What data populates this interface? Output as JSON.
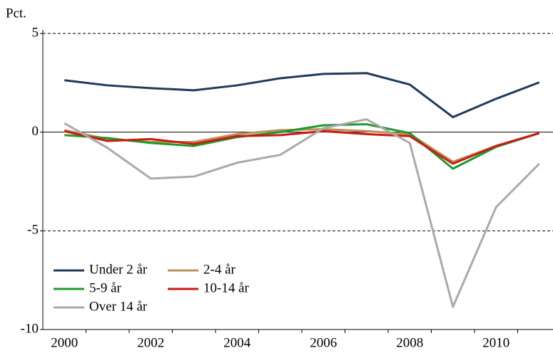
{
  "chart_data": {
    "type": "line",
    "y_label": "Pct.",
    "categories": [
      "2000",
      null,
      "2002",
      null,
      "2004",
      null,
      "2006",
      null,
      "2008",
      null,
      "2010",
      null
    ],
    "series": [
      {
        "name": "Under 2 år",
        "color": "#1f3b5a",
        "values": [
          2.63,
          2.37,
          2.23,
          2.12,
          2.37,
          2.73,
          2.95,
          2.99,
          2.41,
          0.76,
          1.69,
          2.52
        ]
      },
      {
        "name": "2-4 år",
        "color": "#b8925a",
        "values": [
          0.1,
          -0.35,
          -0.5,
          -0.5,
          -0.1,
          0.1,
          0.15,
          0.05,
          -0.1,
          -1.5,
          -0.7,
          -0.05
        ]
      },
      {
        "name": "5-9 år",
        "color": "#1e9a2e",
        "values": [
          -0.15,
          -0.3,
          -0.55,
          -0.7,
          -0.25,
          0.0,
          0.35,
          0.4,
          -0.05,
          -1.85,
          -0.75,
          -0.05
        ]
      },
      {
        "name": "10-14 år",
        "color": "#cc1a10",
        "values": [
          0.05,
          -0.45,
          -0.35,
          -0.6,
          -0.2,
          -0.15,
          0.05,
          -0.1,
          -0.2,
          -1.6,
          -0.7,
          -0.05
        ]
      },
      {
        "name": "Over 14 år",
        "color": "#aaaaaa",
        "values": [
          0.45,
          -0.8,
          -2.35,
          -2.25,
          -1.55,
          -1.15,
          0.2,
          0.65,
          -0.55,
          -8.85,
          -3.8,
          -1.6
        ]
      }
    ],
    "ylim": [
      -10,
      5
    ],
    "yticks": [
      -10,
      -5,
      0,
      5
    ],
    "grid": true,
    "legend": "lower left"
  }
}
